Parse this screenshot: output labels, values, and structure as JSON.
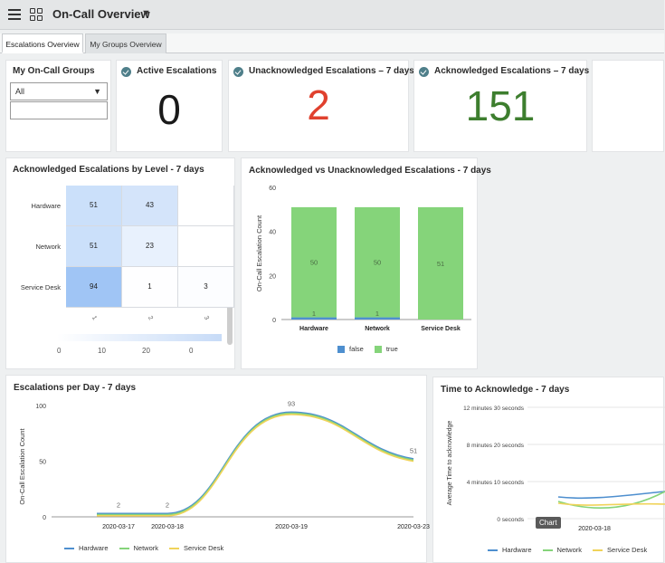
{
  "header": {
    "title": "On-Call Overview"
  },
  "tabs": [
    {
      "label": "Escalations Overview",
      "active": true
    },
    {
      "label": "My Groups Overview",
      "active": false
    }
  ],
  "groups": {
    "title": "My On-Call Groups",
    "select_value": "All",
    "input_value": ""
  },
  "kpis": [
    {
      "label": "Active Escalations",
      "value": "0",
      "color": "#1a1a1a"
    },
    {
      "label": "Unacknowledged Escalations – 7 days",
      "value": "2",
      "color": "#e0412e"
    },
    {
      "label": "Acknowledged Escalations – 7 days",
      "value": "151",
      "color": "#3d7e2e"
    }
  ],
  "colors": {
    "false": "#4e8fcf",
    "true": "#85d47a",
    "hardware": "#4e8fcf",
    "network": "#85d47a",
    "service_desk": "#f0d35a"
  },
  "chart_data": [
    {
      "type": "heatmap",
      "title": "Acknowledged Escalations by Level - 7 days",
      "rows": [
        "Hardware",
        "Network",
        "Service Desk"
      ],
      "columns": [
        "1",
        "2",
        "3"
      ],
      "values": [
        [
          51,
          43,
          null
        ],
        [
          51,
          23,
          null
        ],
        [
          94,
          1,
          3
        ]
      ],
      "scale_ticks": [
        "0",
        "10",
        "20",
        "0"
      ]
    },
    {
      "type": "bar",
      "title": "Acknowledged vs Unacknowledged Escalations - 7 days",
      "categories": [
        "Hardware",
        "Network",
        "Service Desk"
      ],
      "series": [
        {
          "name": "false",
          "values": [
            1,
            1,
            0
          ]
        },
        {
          "name": "true",
          "values": [
            50,
            50,
            51
          ]
        }
      ],
      "data_labels": {
        "false": [
          "1",
          "1",
          ""
        ],
        "true": [
          "50",
          "50",
          "51"
        ]
      },
      "ylabel": "On-Call Escalation Count",
      "ylim": [
        0,
        60
      ],
      "yticks": [
        0,
        20,
        40,
        60
      ]
    },
    {
      "type": "line",
      "title": "Escalations per Day - 7 days",
      "x": [
        "2020-03-17",
        "2020-03-18",
        "2020-03-19",
        "2020-03-23"
      ],
      "series": [
        {
          "name": "Hardware",
          "values": [
            2,
            2,
            93,
            51
          ]
        },
        {
          "name": "Network",
          "values": [
            2,
            2,
            93,
            51
          ]
        },
        {
          "name": "Service Desk",
          "values": [
            2,
            2,
            93,
            51
          ]
        }
      ],
      "data_labels": [
        "2",
        "2",
        "93",
        "51"
      ],
      "ylabel": "On-Call Escalation Count",
      "ylim": [
        0,
        100
      ],
      "yticks": [
        0,
        50,
        100
      ]
    },
    {
      "type": "line",
      "title": "Time to Acknowledge - 7 days",
      "x": [
        "2020-03-18"
      ],
      "ylabel": "Average Time to acknowledge",
      "yticks": [
        "0 seconds",
        "4 minutes 10 seconds",
        "8 minutes 20 seconds",
        "12 minutes 30 seconds"
      ],
      "series": [
        {
          "name": "Hardware"
        },
        {
          "name": "Network"
        },
        {
          "name": "Service Desk"
        }
      ],
      "tooltip": "Chart"
    }
  ]
}
